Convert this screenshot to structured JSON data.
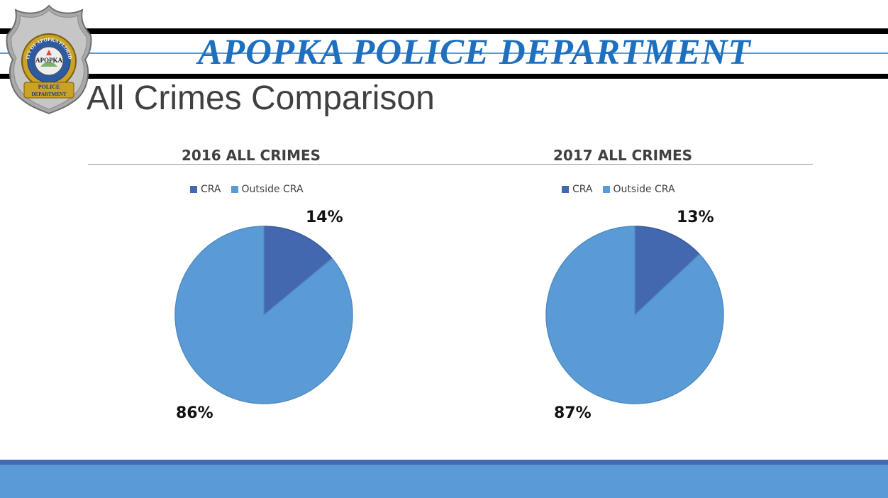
{
  "header": {
    "department": "APOPKA POLICE DEPARTMENT",
    "title": "All Crimes Comparison"
  },
  "badge": {
    "ring_text": "CITY OF APOPKA FLORIDA",
    "center_text": "APOPKA",
    "banner_top": "POLICE",
    "banner_bottom": "DEPARTMENT"
  },
  "colors": {
    "cra": "#4468b0",
    "outside_cra": "#5b9bd5",
    "brand_blue": "#1f6fbf",
    "footer_dark": "#4468b0",
    "footer_light": "#5b9bd5"
  },
  "chart_data": [
    {
      "type": "pie",
      "title": "2016 ALL CRIMES",
      "categories": [
        "CRA",
        "Outside CRA"
      ],
      "values": [
        14,
        86
      ],
      "labels": [
        "14%",
        "86%"
      ],
      "legend_position": "top"
    },
    {
      "type": "pie",
      "title": "2017 ALL CRIMES",
      "categories": [
        "CRA",
        "Outside CRA"
      ],
      "values": [
        13,
        87
      ],
      "labels": [
        "13%",
        "87%"
      ],
      "legend_position": "top"
    }
  ]
}
